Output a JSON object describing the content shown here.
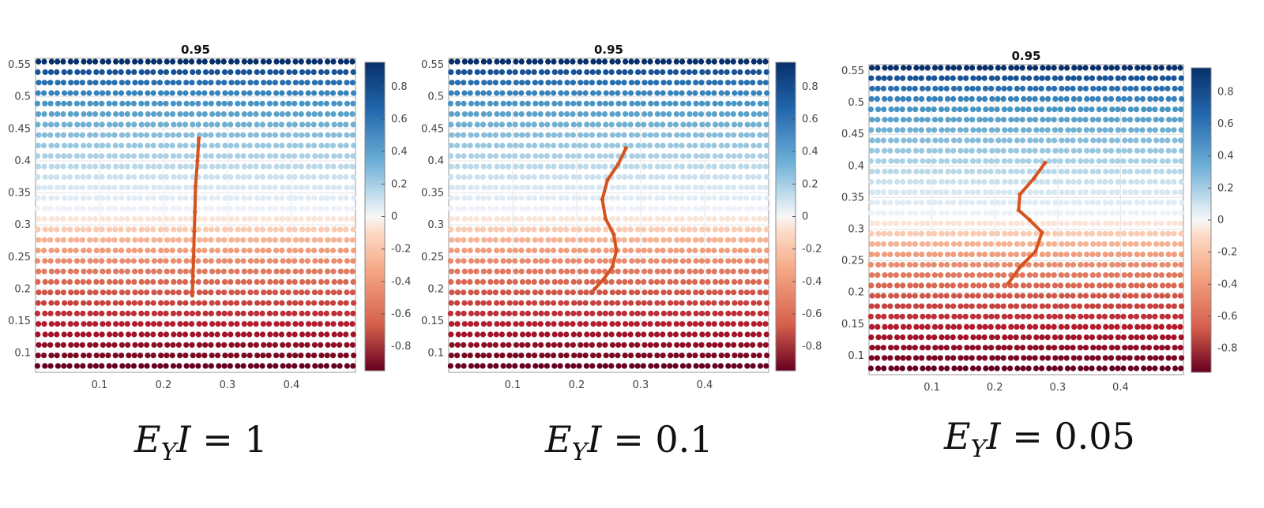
{
  "chart_data": [
    {
      "type": "scatter",
      "title": "0.95",
      "xticks": [
        "0.1",
        "0.2",
        "0.3",
        "0.4"
      ],
      "xtick_values": [
        0.1,
        0.2,
        0.3,
        0.4
      ],
      "yticks": [
        "0.1",
        "0.15",
        "0.2",
        "0.25",
        "0.3",
        "0.35",
        "0.4",
        "0.45",
        "0.5",
        "0.55"
      ],
      "ytick_values": [
        0.1,
        0.15,
        0.2,
        0.25,
        0.3,
        0.35,
        0.4,
        0.45,
        0.5,
        0.55
      ],
      "xlim": [
        0.0,
        0.5
      ],
      "ylim": [
        0.07,
        0.56
      ],
      "colorbar": {
        "ticks": [
          "0.8",
          "0.6",
          "0.4",
          "0.2",
          "0",
          "-0.2",
          "-0.4",
          "-0.6",
          "-0.8"
        ],
        "tick_values": [
          0.8,
          0.6,
          0.4,
          0.2,
          0,
          -0.2,
          -0.4,
          -0.6,
          -0.8
        ],
        "range": [
          -0.95,
          0.95
        ]
      },
      "grid": true,
      "particle_field": {
        "rows_y_from": 0.08,
        "rows_y_to": 0.555,
        "row_count": 30,
        "cols_per_row": 50,
        "color_value": "linear in y from -0.95 at 0.08 to 0.95 at 0.555"
      },
      "filament": {
        "color": "#d4531e",
        "x": [
          0.255,
          0.253,
          0.25,
          0.249,
          0.248,
          0.247,
          0.246,
          0.245
        ],
        "y": [
          0.435,
          0.4,
          0.36,
          0.32,
          0.29,
          0.25,
          0.22,
          0.19
        ]
      },
      "caption": {
        "lhs": "E",
        "sub": "Y",
        "var": "I",
        "rhs": " = 1"
      }
    },
    {
      "type": "scatter",
      "title": "0.95",
      "xticks": [
        "0.1",
        "0.2",
        "0.3",
        "0.4"
      ],
      "xtick_values": [
        0.1,
        0.2,
        0.3,
        0.4
      ],
      "yticks": [
        "0.1",
        "0.15",
        "0.2",
        "0.25",
        "0.3",
        "0.35",
        "0.4",
        "0.45",
        "0.5",
        "0.55"
      ],
      "ytick_values": [
        0.1,
        0.15,
        0.2,
        0.25,
        0.3,
        0.35,
        0.4,
        0.45,
        0.5,
        0.55
      ],
      "xlim": [
        0.0,
        0.5
      ],
      "ylim": [
        0.07,
        0.56
      ],
      "colorbar": {
        "ticks": [
          "0.8",
          "0.6",
          "0.4",
          "0.2",
          "0",
          "-0.2",
          "-0.4",
          "-0.6",
          "-0.8"
        ],
        "tick_values": [
          0.8,
          0.6,
          0.4,
          0.2,
          0,
          -0.2,
          -0.4,
          -0.6,
          -0.8
        ],
        "range": [
          -0.95,
          0.95
        ]
      },
      "grid": true,
      "particle_field": {
        "rows_y_from": 0.08,
        "rows_y_to": 0.555,
        "row_count": 30,
        "cols_per_row": 50,
        "color_value": "linear in y from -0.95 at 0.08 to 0.95 at 0.555"
      },
      "filament": {
        "color": "#d4531e",
        "x": [
          0.277,
          0.265,
          0.248,
          0.24,
          0.245,
          0.258,
          0.262,
          0.256,
          0.242,
          0.228
        ],
        "y": [
          0.42,
          0.395,
          0.37,
          0.34,
          0.31,
          0.285,
          0.26,
          0.235,
          0.215,
          0.2
        ]
      },
      "caption": {
        "lhs": "E",
        "sub": "Y",
        "var": "I",
        "rhs": " = 0.1"
      }
    },
    {
      "type": "scatter",
      "title": "0.95",
      "xticks": [
        "0.1",
        "0.2",
        "0.3",
        "0.4"
      ],
      "xtick_values": [
        0.1,
        0.2,
        0.3,
        0.4
      ],
      "yticks": [
        "0.1",
        "0.15",
        "0.2",
        "0.25",
        "0.3",
        "0.35",
        "0.4",
        "0.45",
        "0.5",
        "0.55"
      ],
      "ytick_values": [
        0.1,
        0.15,
        0.2,
        0.25,
        0.3,
        0.35,
        0.4,
        0.45,
        0.5,
        0.55
      ],
      "xlim": [
        0.0,
        0.5
      ],
      "ylim": [
        0.07,
        0.56
      ],
      "colorbar": {
        "ticks": [
          "0.8",
          "0.6",
          "0.4",
          "0.2",
          "0",
          "-0.2",
          "-0.4",
          "-0.6",
          "-0.8"
        ],
        "tick_values": [
          0.8,
          0.6,
          0.4,
          0.2,
          0,
          -0.2,
          -0.4,
          -0.6,
          -0.8
        ],
        "range": [
          -0.95,
          0.95
        ]
      },
      "grid": true,
      "particle_field": {
        "rows_y_from": 0.08,
        "rows_y_to": 0.555,
        "row_count": 30,
        "cols_per_row": 50,
        "color_value": "linear in y from -0.95 at 0.08 to 0.95 at 0.555"
      },
      "filament": {
        "color": "#d4531e",
        "x": [
          0.28,
          0.262,
          0.24,
          0.238,
          0.255,
          0.275,
          0.265,
          0.24,
          0.222
        ],
        "y": [
          0.405,
          0.38,
          0.355,
          0.33,
          0.315,
          0.295,
          0.265,
          0.24,
          0.215
        ]
      },
      "caption": {
        "lhs": "E",
        "sub": "Y",
        "var": "I",
        "rhs": " = 0.05"
      }
    }
  ]
}
